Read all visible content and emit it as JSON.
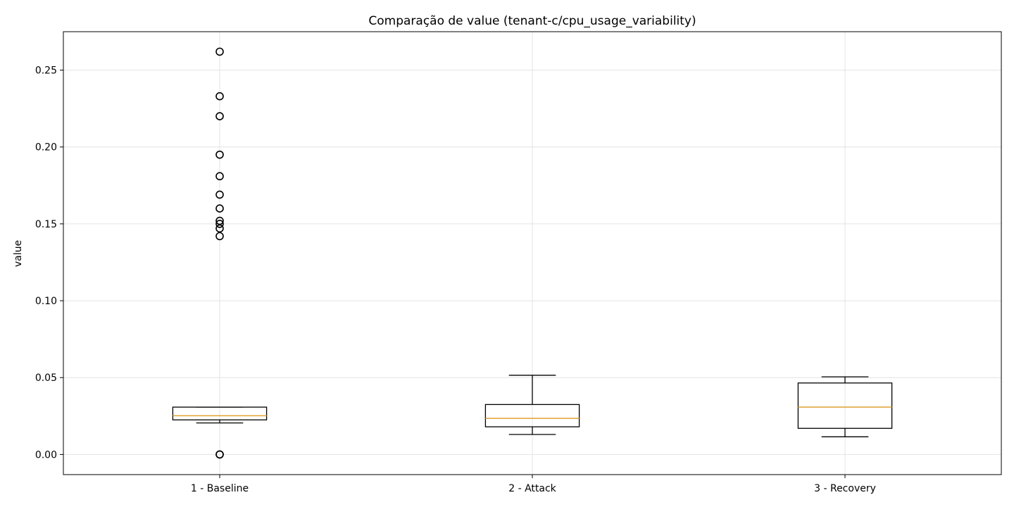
{
  "chart_data": {
    "type": "box",
    "title": "Comparação de value (tenant-c/cpu_usage_variability)",
    "xlabel": "",
    "ylabel": "value",
    "ylim": [
      -0.0131,
      0.275
    ],
    "yticks": [
      0.0,
      0.05,
      0.1,
      0.15,
      0.2,
      0.25
    ],
    "ytick_labels": [
      "0.00",
      "0.05",
      "0.10",
      "0.15",
      "0.20",
      "0.25"
    ],
    "grid": true,
    "categories": [
      "1 - Baseline",
      "2 - Attack",
      "3 - Recovery"
    ],
    "series": [
      {
        "category": "1 - Baseline",
        "whisker_low": 0.0205,
        "q1": 0.0225,
        "median": 0.0252,
        "q3": 0.0308,
        "whisker_high": 0.0308,
        "outliers": [
          0.0,
          0.0,
          0.142,
          0.147,
          0.15,
          0.152,
          0.16,
          0.169,
          0.181,
          0.195,
          0.22,
          0.233,
          0.262
        ]
      },
      {
        "category": "2 - Attack",
        "whisker_low": 0.013,
        "q1": 0.018,
        "median": 0.0235,
        "q3": 0.0325,
        "whisker_high": 0.0515,
        "outliers": []
      },
      {
        "category": "3 - Recovery",
        "whisker_low": 0.0115,
        "q1": 0.017,
        "median": 0.0308,
        "q3": 0.0465,
        "whisker_high": 0.0505,
        "outliers": []
      }
    ],
    "colors": {
      "box": "#000000",
      "median": "#e0a030",
      "grid": "#e3e3e3",
      "outlier": "#000000"
    }
  }
}
